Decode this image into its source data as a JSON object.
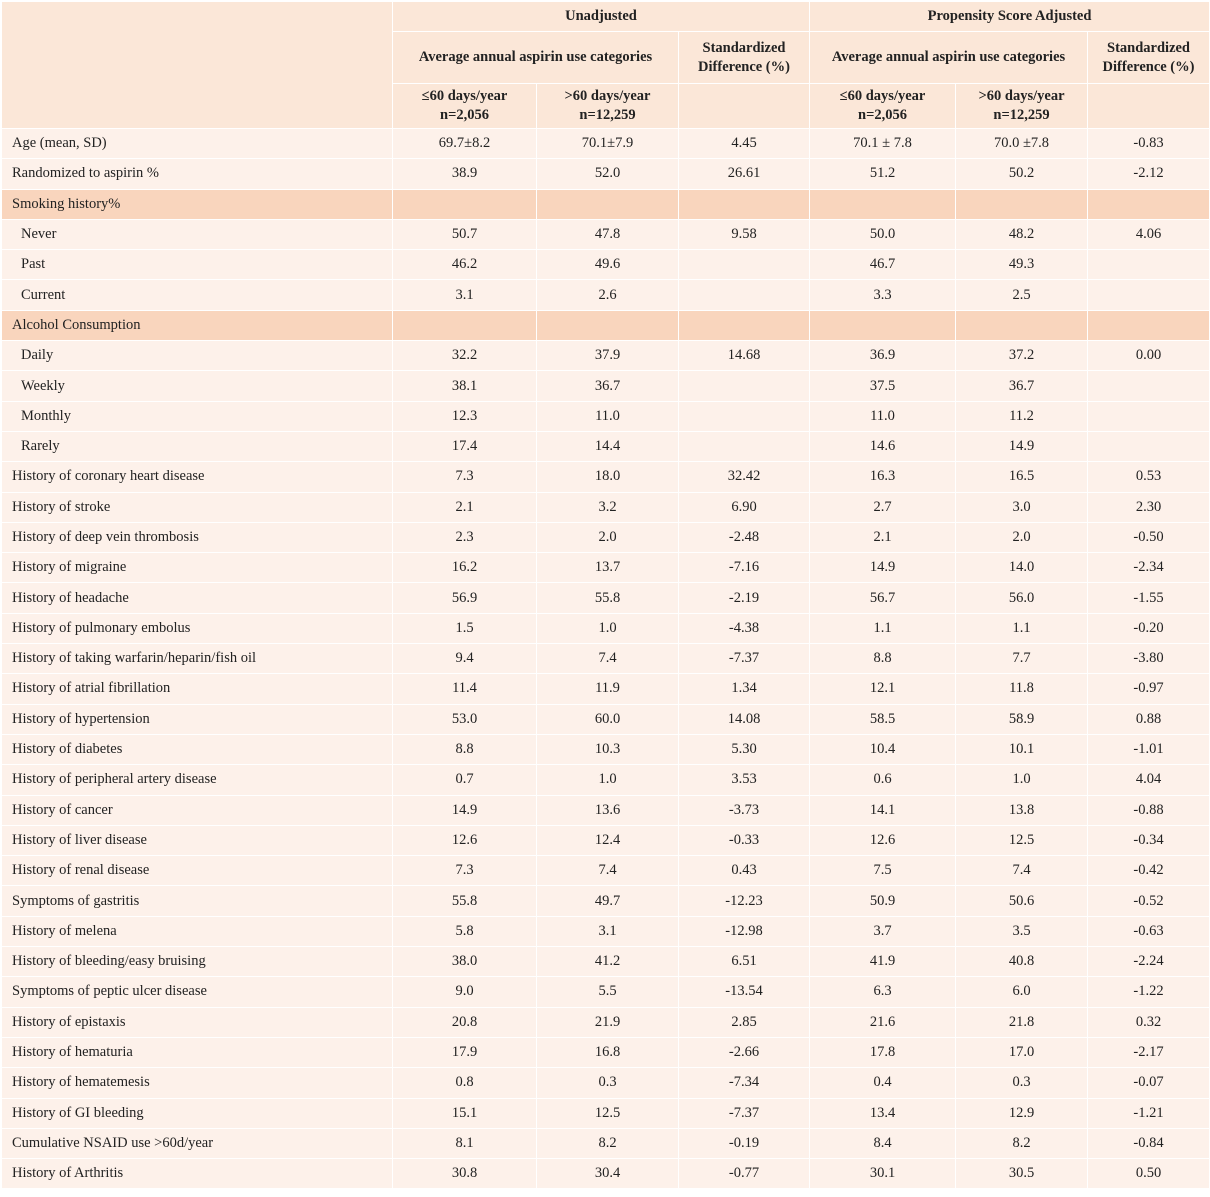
{
  "header": {
    "group_unadjusted": "Unadjusted",
    "group_adjusted": "Propensity Score Adjusted",
    "aspirin_categories": "Average annual aspirin use categories",
    "std_diff_line1": "Standardized",
    "std_diff_line2": "Difference (%)",
    "low_label": "≤60 days/year",
    "low_n": "n=2,056",
    "high_label": ">60 days/year",
    "high_n": "n=12,259"
  },
  "rows": [
    {
      "label": "Age (mean, SD)",
      "u_low": "69.7±8.2",
      "u_high": "70.1±7.9",
      "u_sd": "4.45",
      "a_low": "70.1 ± 7.8",
      "a_high": "70.0 ±7.8",
      "a_sd": "-0.83"
    },
    {
      "label": "Randomized to aspirin %",
      "u_low": "38.9",
      "u_high": "52.0",
      "u_sd": "26.61",
      "a_low": "51.2",
      "a_high": "50.2",
      "a_sd": "-2.12"
    },
    {
      "label": "Smoking history%",
      "section": true
    },
    {
      "label": "Never",
      "sub": true,
      "u_low": "50.7",
      "u_high": "47.8",
      "u_sd": "9.58",
      "a_low": "50.0",
      "a_high": "48.2",
      "a_sd": "4.06"
    },
    {
      "label": "Past",
      "sub": true,
      "u_low": "46.2",
      "u_high": "49.6",
      "u_sd": "",
      "a_low": "46.7",
      "a_high": "49.3",
      "a_sd": ""
    },
    {
      "label": "Current",
      "sub": true,
      "u_low": "3.1",
      "u_high": "2.6",
      "u_sd": "",
      "a_low": "3.3",
      "a_high": "2.5",
      "a_sd": ""
    },
    {
      "label": "Alcohol Consumption",
      "section": true
    },
    {
      "label": "Daily",
      "sub": true,
      "u_low": "32.2",
      "u_high": "37.9",
      "u_sd": "14.68",
      "a_low": "36.9",
      "a_high": "37.2",
      "a_sd": "0.00"
    },
    {
      "label": "Weekly",
      "sub": true,
      "u_low": "38.1",
      "u_high": "36.7",
      "u_sd": "",
      "a_low": "37.5",
      "a_high": "36.7",
      "a_sd": ""
    },
    {
      "label": "Monthly",
      "sub": true,
      "u_low": "12.3",
      "u_high": "11.0",
      "u_sd": "",
      "a_low": "11.0",
      "a_high": "11.2",
      "a_sd": ""
    },
    {
      "label": "Rarely",
      "sub": true,
      "u_low": "17.4",
      "u_high": "14.4",
      "u_sd": "",
      "a_low": "14.6",
      "a_high": "14.9",
      "a_sd": ""
    },
    {
      "label": "History of coronary heart disease",
      "u_low": "7.3",
      "u_high": "18.0",
      "u_sd": "32.42",
      "a_low": "16.3",
      "a_high": "16.5",
      "a_sd": "0.53"
    },
    {
      "label": "History of stroke",
      "u_low": "2.1",
      "u_high": "3.2",
      "u_sd": "6.90",
      "a_low": "2.7",
      "a_high": "3.0",
      "a_sd": "2.30"
    },
    {
      "label": "History of deep vein thrombosis",
      "u_low": "2.3",
      "u_high": "2.0",
      "u_sd": "-2.48",
      "a_low": "2.1",
      "a_high": "2.0",
      "a_sd": "-0.50"
    },
    {
      "label": "History of migraine",
      "u_low": "16.2",
      "u_high": "13.7",
      "u_sd": "-7.16",
      "a_low": "14.9",
      "a_high": "14.0",
      "a_sd": "-2.34"
    },
    {
      "label": "History of headache",
      "u_low": "56.9",
      "u_high": "55.8",
      "u_sd": "-2.19",
      "a_low": "56.7",
      "a_high": "56.0",
      "a_sd": "-1.55"
    },
    {
      "label": "History of pulmonary embolus",
      "u_low": "1.5",
      "u_high": "1.0",
      "u_sd": "-4.38",
      "a_low": "1.1",
      "a_high": "1.1",
      "a_sd": "-0.20"
    },
    {
      "label": "History of taking warfarin/heparin/fish oil",
      "u_low": "9.4",
      "u_high": "7.4",
      "u_sd": "-7.37",
      "a_low": "8.8",
      "a_high": "7.7",
      "a_sd": "-3.80"
    },
    {
      "label": "History of atrial fibrillation",
      "u_low": "11.4",
      "u_high": "11.9",
      "u_sd": "1.34",
      "a_low": "12.1",
      "a_high": "11.8",
      "a_sd": "-0.97"
    },
    {
      "label": "History of hypertension",
      "u_low": "53.0",
      "u_high": "60.0",
      "u_sd": "14.08",
      "a_low": "58.5",
      "a_high": "58.9",
      "a_sd": "0.88"
    },
    {
      "label": "History of diabetes",
      "u_low": "8.8",
      "u_high": "10.3",
      "u_sd": "5.30",
      "a_low": "10.4",
      "a_high": "10.1",
      "a_sd": "-1.01"
    },
    {
      "label": "History of peripheral artery disease",
      "u_low": "0.7",
      "u_high": "1.0",
      "u_sd": "3.53",
      "a_low": "0.6",
      "a_high": "1.0",
      "a_sd": "4.04"
    },
    {
      "label": "History of cancer",
      "u_low": "14.9",
      "u_high": "13.6",
      "u_sd": "-3.73",
      "a_low": "14.1",
      "a_high": "13.8",
      "a_sd": "-0.88"
    },
    {
      "label": "History of liver disease",
      "u_low": "12.6",
      "u_high": "12.4",
      "u_sd": "-0.33",
      "a_low": "12.6",
      "a_high": "12.5",
      "a_sd": "-0.34"
    },
    {
      "label": "History of renal disease",
      "u_low": "7.3",
      "u_high": "7.4",
      "u_sd": "0.43",
      "a_low": "7.5",
      "a_high": "7.4",
      "a_sd": "-0.42"
    },
    {
      "label": "Symptoms of gastritis",
      "u_low": "55.8",
      "u_high": "49.7",
      "u_sd": "-12.23",
      "a_low": "50.9",
      "a_high": "50.6",
      "a_sd": "-0.52"
    },
    {
      "label": "History of melena",
      "u_low": "5.8",
      "u_high": "3.1",
      "u_sd": "-12.98",
      "a_low": "3.7",
      "a_high": "3.5",
      "a_sd": "-0.63"
    },
    {
      "label": "History of bleeding/easy bruising",
      "u_low": "38.0",
      "u_high": "41.2",
      "u_sd": "6.51",
      "a_low": "41.9",
      "a_high": "40.8",
      "a_sd": "-2.24"
    },
    {
      "label": "Symptoms of peptic ulcer disease",
      "u_low": "9.0",
      "u_high": "5.5",
      "u_sd": "-13.54",
      "a_low": "6.3",
      "a_high": "6.0",
      "a_sd": "-1.22"
    },
    {
      "label": "History of epistaxis",
      "u_low": "20.8",
      "u_high": "21.9",
      "u_sd": "2.85",
      "a_low": "21.6",
      "a_high": "21.8",
      "a_sd": "0.32"
    },
    {
      "label": "History of hematuria",
      "u_low": "17.9",
      "u_high": "16.8",
      "u_sd": "-2.66",
      "a_low": "17.8",
      "a_high": "17.0",
      "a_sd": "-2.17"
    },
    {
      "label": "History of hematemesis",
      "u_low": "0.8",
      "u_high": "0.3",
      "u_sd": "-7.34",
      "a_low": "0.4",
      "a_high": "0.3",
      "a_sd": "-0.07"
    },
    {
      "label": "History of GI bleeding",
      "u_low": "15.1",
      "u_high": "12.5",
      "u_sd": "-7.37",
      "a_low": "13.4",
      "a_high": "12.9",
      "a_sd": "-1.21"
    },
    {
      "label": "Cumulative NSAID use >60d/year",
      "u_low": "8.1",
      "u_high": "8.2",
      "u_sd": "-0.19",
      "a_low": "8.4",
      "a_high": "8.2",
      "a_sd": "-0.84"
    },
    {
      "label": "History of Arthritis",
      "u_low": "30.8",
      "u_high": "30.4",
      "u_sd": "-0.77",
      "a_low": "30.1",
      "a_high": "30.5",
      "a_sd": "0.50"
    }
  ]
}
